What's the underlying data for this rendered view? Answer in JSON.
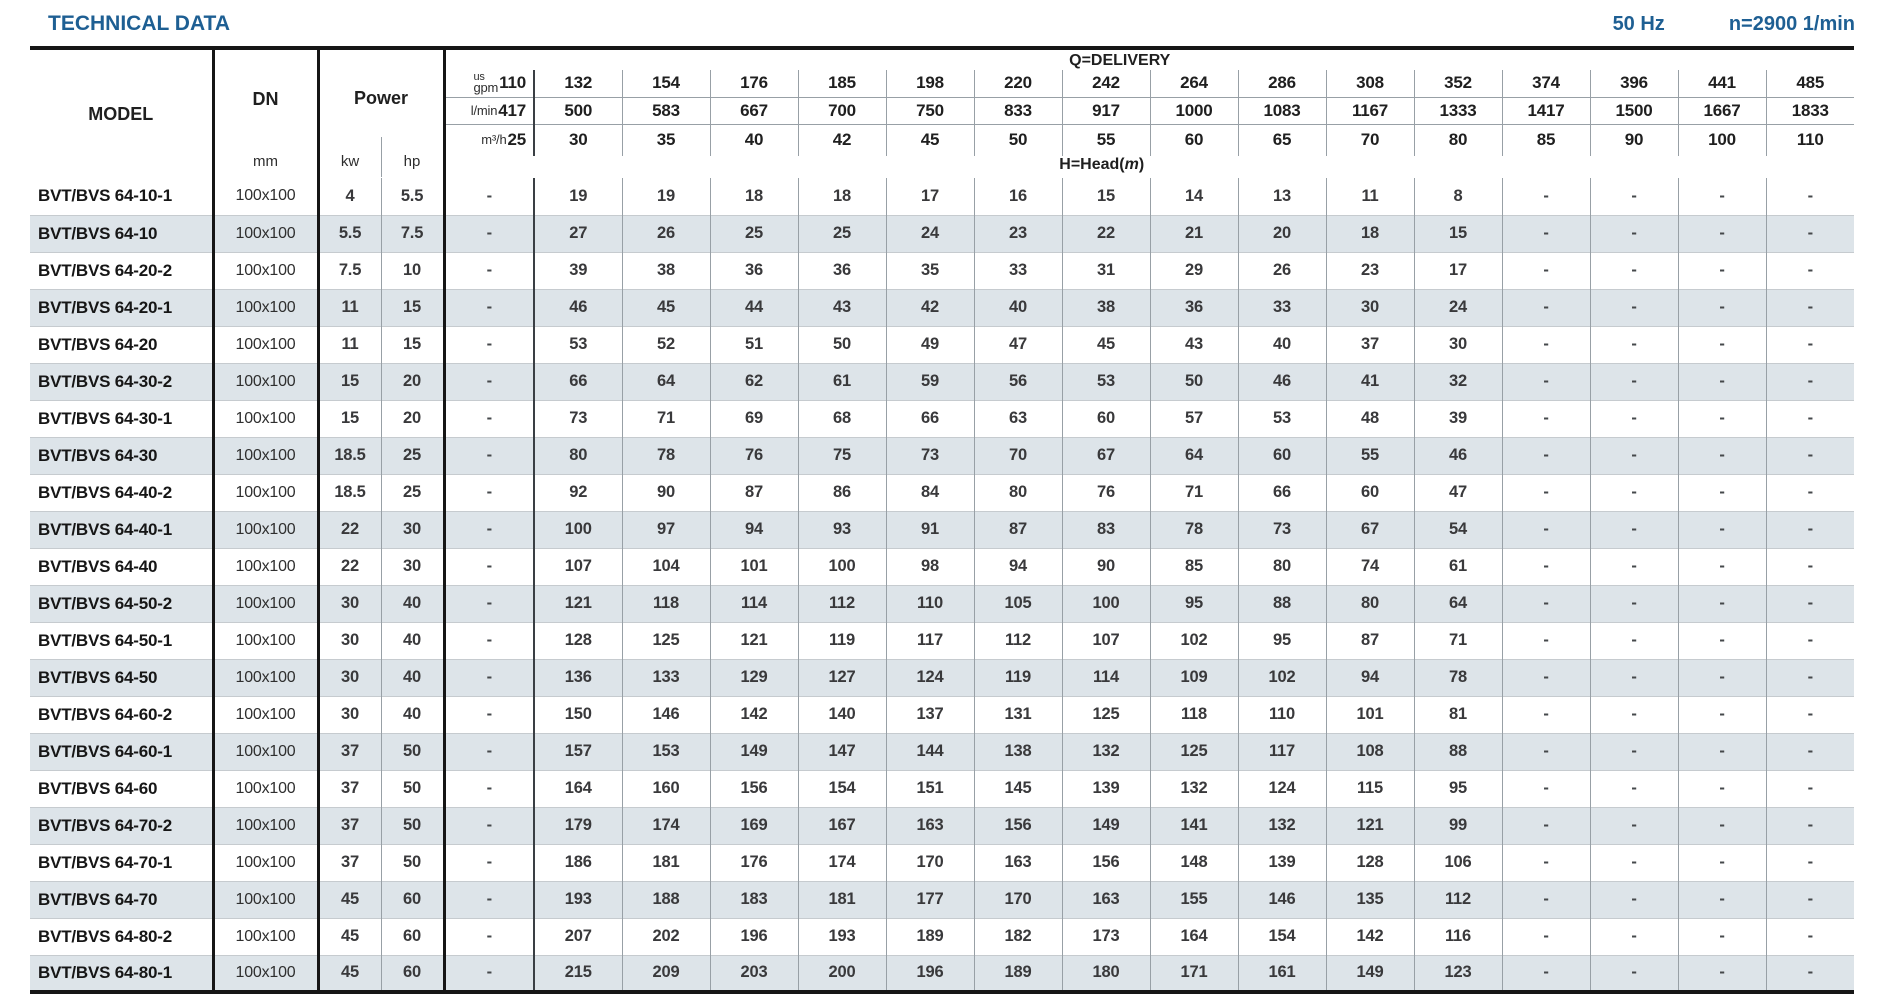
{
  "colors": {
    "accent": "#1e5f93",
    "stripe": "#dde4e9"
  },
  "page": {
    "title": "TECHNICAL DATA",
    "frequency": "50 Hz",
    "speed": "n=2900 1/min"
  },
  "table": {
    "headers": {
      "model": "MODEL",
      "dn": "DN",
      "dn_unit": "mm",
      "power": "Power",
      "power_units": [
        "kw",
        "hp"
      ]
    },
    "delivery_header": {
      "title": "Q=DELIVERY",
      "head": {
        "prefix": "H=Head(",
        "var": "m",
        "suffix": ")"
      },
      "rows": [
        {
          "unit_top": "us",
          "unit": "gpm",
          "values": [
            "110",
            "132",
            "154",
            "176",
            "185",
            "198",
            "220",
            "242",
            "264",
            "286",
            "308",
            "352",
            "374",
            "396",
            "441",
            "485"
          ]
        },
        {
          "unit": "l/min",
          "values": [
            "417",
            "500",
            "583",
            "667",
            "700",
            "750",
            "833",
            "917",
            "1000",
            "1083",
            "1167",
            "1333",
            "1417",
            "1500",
            "1667",
            "1833"
          ]
        },
        {
          "unit": "m³/h",
          "values": [
            "25",
            "30",
            "35",
            "40",
            "42",
            "45",
            "50",
            "55",
            "60",
            "65",
            "70",
            "80",
            "85",
            "90",
            "100",
            "110"
          ]
        }
      ]
    },
    "rows": [
      {
        "model": "BVT/BVS 64-10-1",
        "dn": "100x100",
        "kw": "4",
        "hp": "5.5",
        "values": [
          "-",
          "19",
          "19",
          "18",
          "18",
          "17",
          "16",
          "15",
          "14",
          "13",
          "11",
          "8",
          "-",
          "-",
          "-",
          "-"
        ]
      },
      {
        "model": "BVT/BVS 64-10",
        "dn": "100x100",
        "kw": "5.5",
        "hp": "7.5",
        "values": [
          "-",
          "27",
          "26",
          "25",
          "25",
          "24",
          "23",
          "22",
          "21",
          "20",
          "18",
          "15",
          "-",
          "-",
          "-",
          "-"
        ]
      },
      {
        "model": "BVT/BVS 64-20-2",
        "dn": "100x100",
        "kw": "7.5",
        "hp": "10",
        "values": [
          "-",
          "39",
          "38",
          "36",
          "36",
          "35",
          "33",
          "31",
          "29",
          "26",
          "23",
          "17",
          "-",
          "-",
          "-",
          "-"
        ]
      },
      {
        "model": "BVT/BVS 64-20-1",
        "dn": "100x100",
        "kw": "11",
        "hp": "15",
        "values": [
          "-",
          "46",
          "45",
          "44",
          "43",
          "42",
          "40",
          "38",
          "36",
          "33",
          "30",
          "24",
          "-",
          "-",
          "-",
          "-"
        ]
      },
      {
        "model": "BVT/BVS 64-20",
        "dn": "100x100",
        "kw": "11",
        "hp": "15",
        "values": [
          "-",
          "53",
          "52",
          "51",
          "50",
          "49",
          "47",
          "45",
          "43",
          "40",
          "37",
          "30",
          "-",
          "-",
          "-",
          "-"
        ]
      },
      {
        "model": "BVT/BVS 64-30-2",
        "dn": "100x100",
        "kw": "15",
        "hp": "20",
        "values": [
          "-",
          "66",
          "64",
          "62",
          "61",
          "59",
          "56",
          "53",
          "50",
          "46",
          "41",
          "32",
          "-",
          "-",
          "-",
          "-"
        ]
      },
      {
        "model": "BVT/BVS 64-30-1",
        "dn": "100x100",
        "kw": "15",
        "hp": "20",
        "values": [
          "-",
          "73",
          "71",
          "69",
          "68",
          "66",
          "63",
          "60",
          "57",
          "53",
          "48",
          "39",
          "-",
          "-",
          "-",
          "-"
        ]
      },
      {
        "model": "BVT/BVS 64-30",
        "dn": "100x100",
        "kw": "18.5",
        "hp": "25",
        "values": [
          "-",
          "80",
          "78",
          "76",
          "75",
          "73",
          "70",
          "67",
          "64",
          "60",
          "55",
          "46",
          "-",
          "-",
          "-",
          "-"
        ]
      },
      {
        "model": "BVT/BVS 64-40-2",
        "dn": "100x100",
        "kw": "18.5",
        "hp": "25",
        "values": [
          "-",
          "92",
          "90",
          "87",
          "86",
          "84",
          "80",
          "76",
          "71",
          "66",
          "60",
          "47",
          "-",
          "-",
          "-",
          "-"
        ]
      },
      {
        "model": "BVT/BVS 64-40-1",
        "dn": "100x100",
        "kw": "22",
        "hp": "30",
        "values": [
          "-",
          "100",
          "97",
          "94",
          "93",
          "91",
          "87",
          "83",
          "78",
          "73",
          "67",
          "54",
          "-",
          "-",
          "-",
          "-"
        ]
      },
      {
        "model": "BVT/BVS 64-40",
        "dn": "100x100",
        "kw": "22",
        "hp": "30",
        "values": [
          "-",
          "107",
          "104",
          "101",
          "100",
          "98",
          "94",
          "90",
          "85",
          "80",
          "74",
          "61",
          "-",
          "-",
          "-",
          "-"
        ]
      },
      {
        "model": "BVT/BVS 64-50-2",
        "dn": "100x100",
        "kw": "30",
        "hp": "40",
        "values": [
          "-",
          "121",
          "118",
          "114",
          "112",
          "110",
          "105",
          "100",
          "95",
          "88",
          "80",
          "64",
          "-",
          "-",
          "-",
          "-"
        ]
      },
      {
        "model": "BVT/BVS 64-50-1",
        "dn": "100x100",
        "kw": "30",
        "hp": "40",
        "values": [
          "-",
          "128",
          "125",
          "121",
          "119",
          "117",
          "112",
          "107",
          "102",
          "95",
          "87",
          "71",
          "-",
          "-",
          "-",
          "-"
        ]
      },
      {
        "model": "BVT/BVS 64-50",
        "dn": "100x100",
        "kw": "30",
        "hp": "40",
        "values": [
          "-",
          "136",
          "133",
          "129",
          "127",
          "124",
          "119",
          "114",
          "109",
          "102",
          "94",
          "78",
          "-",
          "-",
          "-",
          "-"
        ]
      },
      {
        "model": "BVT/BVS 64-60-2",
        "dn": "100x100",
        "kw": "30",
        "hp": "40",
        "values": [
          "-",
          "150",
          "146",
          "142",
          "140",
          "137",
          "131",
          "125",
          "118",
          "110",
          "101",
          "81",
          "-",
          "-",
          "-",
          "-"
        ]
      },
      {
        "model": "BVT/BVS 64-60-1",
        "dn": "100x100",
        "kw": "37",
        "hp": "50",
        "values": [
          "-",
          "157",
          "153",
          "149",
          "147",
          "144",
          "138",
          "132",
          "125",
          "117",
          "108",
          "88",
          "-",
          "-",
          "-",
          "-"
        ]
      },
      {
        "model": "BVT/BVS 64-60",
        "dn": "100x100",
        "kw": "37",
        "hp": "50",
        "values": [
          "-",
          "164",
          "160",
          "156",
          "154",
          "151",
          "145",
          "139",
          "132",
          "124",
          "115",
          "95",
          "-",
          "-",
          "-",
          "-"
        ]
      },
      {
        "model": "BVT/BVS 64-70-2",
        "dn": "100x100",
        "kw": "37",
        "hp": "50",
        "values": [
          "-",
          "179",
          "174",
          "169",
          "167",
          "163",
          "156",
          "149",
          "141",
          "132",
          "121",
          "99",
          "-",
          "-",
          "-",
          "-"
        ]
      },
      {
        "model": "BVT/BVS 64-70-1",
        "dn": "100x100",
        "kw": "37",
        "hp": "50",
        "values": [
          "-",
          "186",
          "181",
          "176",
          "174",
          "170",
          "163",
          "156",
          "148",
          "139",
          "128",
          "106",
          "-",
          "-",
          "-",
          "-"
        ]
      },
      {
        "model": "BVT/BVS 64-70",
        "dn": "100x100",
        "kw": "45",
        "hp": "60",
        "values": [
          "-",
          "193",
          "188",
          "183",
          "181",
          "177",
          "170",
          "163",
          "155",
          "146",
          "135",
          "112",
          "-",
          "-",
          "-",
          "-"
        ]
      },
      {
        "model": "BVT/BVS 64-80-2",
        "dn": "100x100",
        "kw": "45",
        "hp": "60",
        "values": [
          "-",
          "207",
          "202",
          "196",
          "193",
          "189",
          "182",
          "173",
          "164",
          "154",
          "142",
          "116",
          "-",
          "-",
          "-",
          "-"
        ]
      },
      {
        "model": "BVT/BVS 64-80-1",
        "dn": "100x100",
        "kw": "45",
        "hp": "60",
        "values": [
          "-",
          "215",
          "209",
          "203",
          "200",
          "196",
          "189",
          "180",
          "171",
          "161",
          "149",
          "123",
          "-",
          "-",
          "-",
          "-"
        ]
      }
    ]
  }
}
